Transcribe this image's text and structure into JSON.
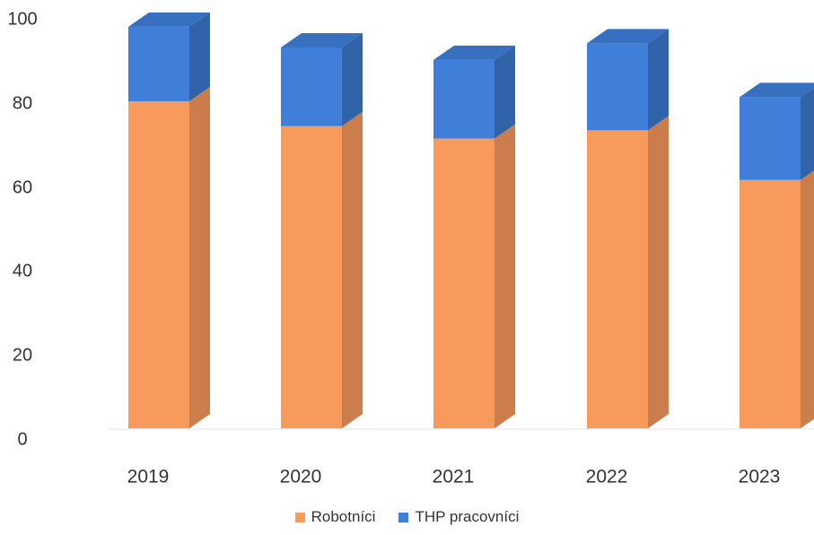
{
  "chart_data": {
    "type": "bar",
    "stacked": true,
    "three_d": true,
    "categories": [
      "2019",
      "2020",
      "2021",
      "2022",
      "2023"
    ],
    "series": [
      {
        "name": "Robotníci",
        "color": "#F79A5C",
        "values": [
          79,
          73,
          70,
          72,
          60
        ]
      },
      {
        "name": "THP pracovníci",
        "color": "#3F7FD9",
        "values": [
          18,
          19,
          19,
          21,
          20
        ]
      }
    ],
    "ylim": [
      0,
      100
    ],
    "yticks": [
      "0",
      "20",
      "40",
      "60",
      "80",
      "100"
    ],
    "grid": false,
    "legend_position": "bottom"
  }
}
